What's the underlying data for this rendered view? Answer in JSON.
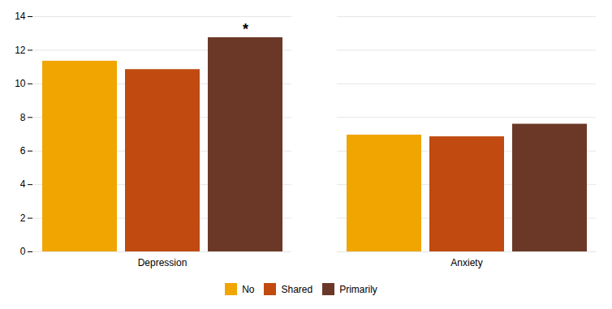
{
  "chart_data": {
    "type": "bar",
    "categories": [
      "Depression",
      "Anxiety"
    ],
    "series": [
      {
        "name": "No",
        "color": "#F0A500",
        "values": [
          11.35,
          6.95
        ]
      },
      {
        "name": "Shared",
        "color": "#C04A10",
        "values": [
          10.85,
          6.85
        ]
      },
      {
        "name": "Primarily",
        "color": "#6B3828",
        "values": [
          12.75,
          7.6
        ]
      }
    ],
    "annotations": [
      {
        "text": "*",
        "category": "Depression",
        "series": "Primarily"
      }
    ],
    "ylim": [
      0,
      14
    ],
    "yticks": [
      0,
      2,
      4,
      6,
      8,
      10,
      12,
      14
    ],
    "grid": true,
    "legend": "bottom"
  }
}
